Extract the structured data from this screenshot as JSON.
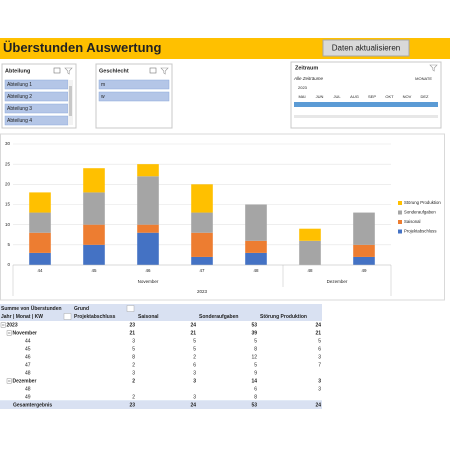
{
  "header": {
    "title": "Überstunden Auswertung",
    "button": "Daten aktualisieren"
  },
  "slicers": [
    {
      "title": "Abteilung",
      "items": [
        "Abteilung 1",
        "Abteilung 2",
        "Abteilung 3",
        "Abteilung 4"
      ]
    },
    {
      "title": "Geschlecht",
      "items": [
        "m",
        "w"
      ]
    }
  ],
  "timeline": {
    "title": "Zeitraum",
    "filter": "Alle Zeiträume",
    "unit": "MONATE",
    "year": "2023",
    "months": [
      "MAI",
      "JUN",
      "JUL",
      "AUG",
      "SEP",
      "OKT",
      "NOV",
      "DEZ"
    ]
  },
  "chart_data": {
    "type": "bar",
    "stacked": true,
    "categories": [
      "44",
      "45",
      "46",
      "47",
      "48",
      "48",
      "49"
    ],
    "groups": [
      {
        "name": "November",
        "count": 5
      },
      {
        "name": "Dezember",
        "count": 2
      }
    ],
    "group_label": "2023",
    "ylim": [
      0,
      30
    ],
    "yticks": [
      0,
      5,
      10,
      15,
      20,
      25,
      30
    ],
    "grid": true,
    "legend": "right",
    "series": [
      {
        "name": "Projektabschluss",
        "color": "#4472c4",
        "values": [
          3,
          5,
          8,
          2,
          3,
          null,
          2
        ]
      },
      {
        "name": "Saisonal",
        "color": "#ed7d31",
        "values": [
          5,
          5,
          2,
          6,
          3,
          null,
          3
        ]
      },
      {
        "name": "Sonderaufgaben",
        "color": "#a5a5a5",
        "values": [
          5,
          8,
          12,
          5,
          9,
          6,
          8
        ]
      },
      {
        "name": "Störung Produktion",
        "color": "#ffc000",
        "values": [
          5,
          6,
          3,
          7,
          null,
          3,
          null
        ]
      }
    ]
  },
  "pivot": {
    "corner": "Summe von Überstunden",
    "column_field": "Grund",
    "row_field": "Jahr | Monat | KW",
    "columns": [
      "Projektabschluss",
      "Saisonal",
      "Sonderaufgaben",
      "Störung Produktion"
    ],
    "rows": [
      {
        "label": "2023",
        "values": [
          23,
          24,
          53,
          24
        ],
        "children": [
          {
            "label": "November",
            "values": [
              21,
              21,
              39,
              21
            ],
            "children": [
              {
                "label": "44",
                "values": [
                  3,
                  5,
                  5,
                  5
                ]
              },
              {
                "label": "45",
                "values": [
                  5,
                  5,
                  8,
                  6
                ]
              },
              {
                "label": "46",
                "values": [
                  8,
                  2,
                  12,
                  3
                ]
              },
              {
                "label": "47",
                "values": [
                  2,
                  6,
                  5,
                  7
                ]
              },
              {
                "label": "48",
                "values": [
                  3,
                  3,
                  9,
                  null
                ]
              }
            ]
          },
          {
            "label": "Dezember",
            "values": [
              2,
              3,
              14,
              3
            ],
            "children": [
              {
                "label": "48",
                "values": [
                  null,
                  null,
                  6,
                  3
                ]
              },
              {
                "label": "49",
                "values": [
                  2,
                  3,
                  8,
                  null
                ]
              }
            ]
          }
        ]
      }
    ],
    "total": {
      "label": "Gesamtergebnis",
      "values": [
        23,
        24,
        53,
        24
      ]
    }
  }
}
